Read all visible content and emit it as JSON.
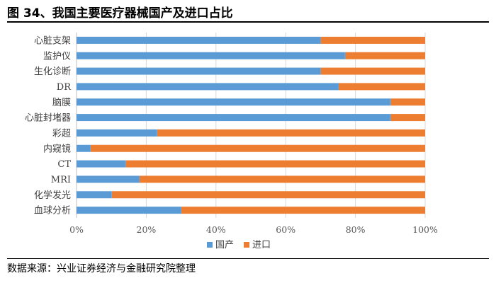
{
  "figure": {
    "title": "图 34、我国主要医疗器械国产及进口占比",
    "source": "数据来源：兴业证券经济与金融研究院整理"
  },
  "colors": {
    "domestic": "#5B9BD5",
    "import": "#ED7D31",
    "grid": "#d9d9d9",
    "axis": "#bfbfbf"
  },
  "chart_data": {
    "type": "bar",
    "orientation": "horizontal",
    "stacked": true,
    "percent_stacked": true,
    "categories": [
      "心脏支架",
      "监护仪",
      "生化诊断",
      "DR",
      "脑膜",
      "心脏封堵器",
      "彩超",
      "内窥镜",
      "CT",
      "MRI",
      "化学发光",
      "血球分析"
    ],
    "series": [
      {
        "name": "国产",
        "color": "#5B9BD5",
        "values": [
          70,
          77,
          70,
          75,
          90,
          90,
          23,
          4,
          14,
          18,
          10,
          30
        ]
      },
      {
        "name": "进口",
        "color": "#ED7D31",
        "values": [
          30,
          23,
          30,
          25,
          10,
          10,
          77,
          96,
          86,
          82,
          90,
          70
        ]
      }
    ],
    "xlim": [
      0,
      100
    ],
    "x_ticks": [
      "0%",
      "20%",
      "40%",
      "60%",
      "80%",
      "100%"
    ],
    "grid": "vertical",
    "legend_position": "bottom"
  }
}
